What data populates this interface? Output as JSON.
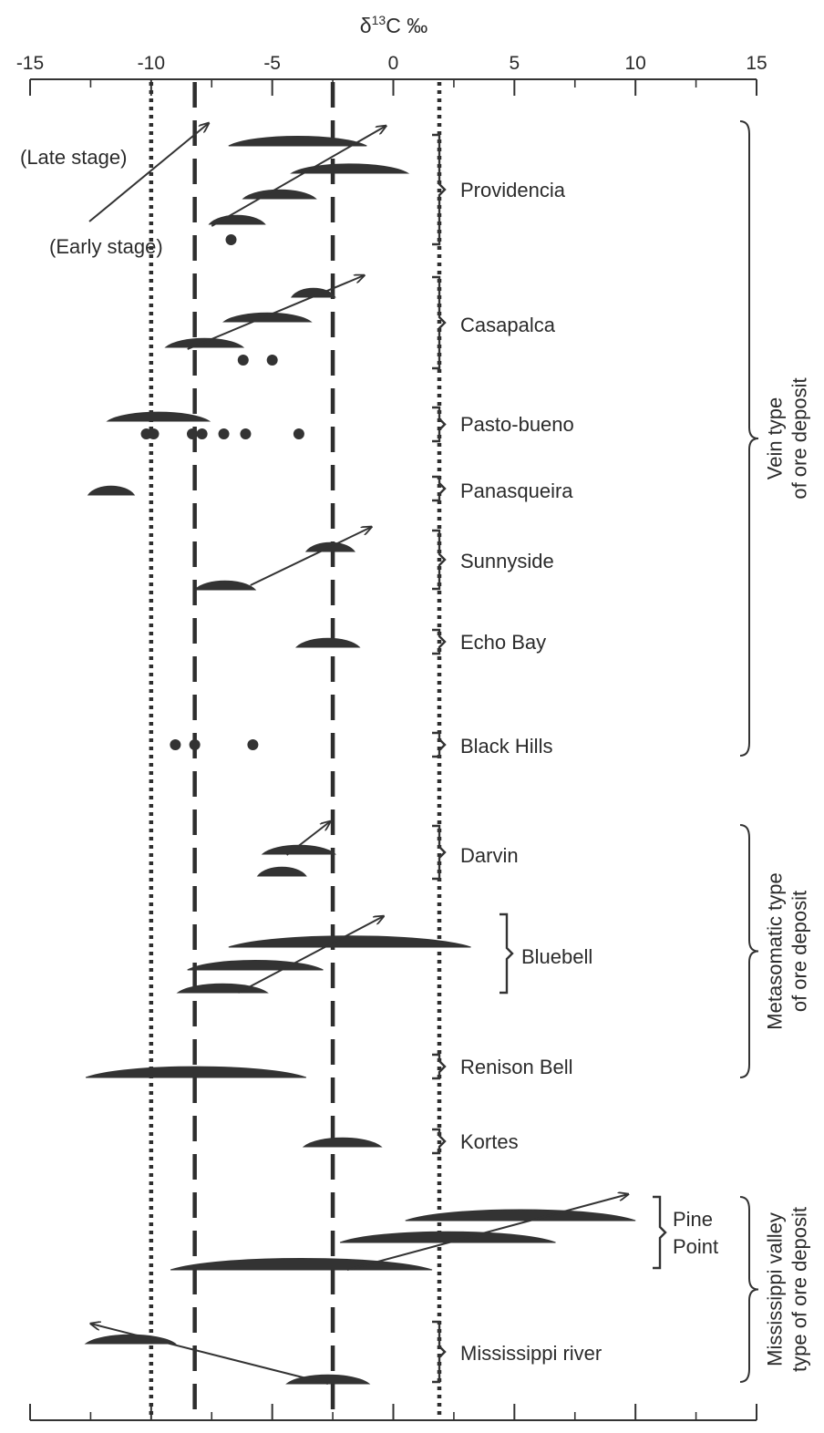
{
  "chart_data": {
    "type": "range",
    "title": "δ13C ‰",
    "title_parts": {
      "delta": "δ",
      "superscript": "13",
      "rest": "C ‰"
    },
    "xlim": [
      -15,
      15
    ],
    "x_ticks": [
      -15,
      -10,
      -5,
      0,
      5,
      10,
      15
    ],
    "x_tick_labels": [
      "-15",
      "-10",
      "-5",
      "0",
      "5",
      "10",
      "15"
    ],
    "reference_lines": [
      {
        "style": "dotted",
        "x": -10
      },
      {
        "style": "dashed",
        "x": -8.2
      },
      {
        "style": "dashed",
        "x": -2.5
      },
      {
        "style": "dotted",
        "x": 1.9
      }
    ],
    "stage_annotations": {
      "late": "(Late stage)",
      "early": "(Early stage)"
    },
    "deposits": [
      {
        "name": "Providencia",
        "ranges": [
          [
            -6.8,
            -1.1
          ],
          [
            -4.2,
            0.6
          ],
          [
            -6.2,
            -3.2
          ],
          [
            -7.6,
            -5.3
          ]
        ],
        "points": [
          -6.7
        ],
        "trend_arrow": [
          -7.5,
          -0.3
        ]
      },
      {
        "name": "Casapalca",
        "ranges": [
          [
            -4.2,
            -2.4
          ],
          [
            -7.0,
            -3.4
          ],
          [
            -9.4,
            -6.2
          ]
        ],
        "points": [
          -6.2,
          -5.0
        ],
        "trend_arrow": [
          -8.5,
          -1.2
        ]
      },
      {
        "name": "Pasto-bueno",
        "ranges": [
          [
            -11.8,
            -7.6
          ]
        ],
        "points": [
          -10.2,
          -9.9,
          -8.3,
          -7.9,
          -7.0,
          -6.1,
          -3.9
        ],
        "trend_arrow": null
      },
      {
        "name": "Panasqueira",
        "ranges": [
          [
            -12.6,
            -10.7
          ]
        ],
        "points": [],
        "trend_arrow": null
      },
      {
        "name": "Sunnyside",
        "ranges": [
          [
            -3.6,
            -1.6
          ],
          [
            -8.2,
            -5.7
          ]
        ],
        "points": [],
        "trend_arrow": [
          -5.9,
          -0.9
        ]
      },
      {
        "name": "Echo Bay",
        "ranges": [
          [
            -4.0,
            -1.4
          ]
        ],
        "points": [],
        "trend_arrow": null
      },
      {
        "name": "Black Hills",
        "ranges": [],
        "points": [
          -9.0,
          -8.2,
          -5.8
        ],
        "trend_arrow": null
      },
      {
        "name": "Darvin",
        "ranges": [
          [
            -5.4,
            -2.4
          ],
          [
            -5.6,
            -3.6
          ]
        ],
        "points": [],
        "trend_arrow": [
          -4.4,
          -2.6
        ]
      },
      {
        "name": "Bluebell",
        "ranges": [
          [
            -6.8,
            3.2
          ],
          [
            -8.5,
            -2.9
          ],
          [
            -8.9,
            -5.2
          ]
        ],
        "points": [],
        "trend_arrow": [
          -6.4,
          -0.4
        ]
      },
      {
        "name": "Renison Bell",
        "ranges": [
          [
            -12.7,
            -3.6
          ]
        ],
        "points": [],
        "trend_arrow": null
      },
      {
        "name": "Kortes",
        "ranges": [
          [
            -3.7,
            -0.5
          ]
        ],
        "points": [],
        "trend_arrow": null
      },
      {
        "name": "Pine Point",
        "label_lines": [
          "Pine",
          "Point"
        ],
        "ranges": [
          [
            0.5,
            10.0
          ],
          [
            -2.2,
            6.7
          ],
          [
            -9.2,
            1.6
          ]
        ],
        "points": [],
        "trend_arrow": [
          -1.9,
          9.7
        ]
      },
      {
        "name": "Mississippi river",
        "ranges": [
          [
            -12.7,
            -9.0
          ],
          [
            -4.4,
            -1.0
          ]
        ],
        "points": [],
        "trend_arrow": [
          -2.7,
          -12.5
        ]
      }
    ],
    "groups": [
      {
        "name": "Vein type of ore deposit",
        "lines": [
          "Vein type",
          "of ore deposit"
        ]
      },
      {
        "name": "Metasomatic type of ore deposit",
        "lines": [
          "Metasomatic type",
          "of ore deposit"
        ]
      },
      {
        "name": "Mississippi valley type of ore deposit",
        "lines": [
          "Mississippi valley",
          "type of ore deposit"
        ]
      }
    ],
    "legend": "none",
    "grid": false
  }
}
